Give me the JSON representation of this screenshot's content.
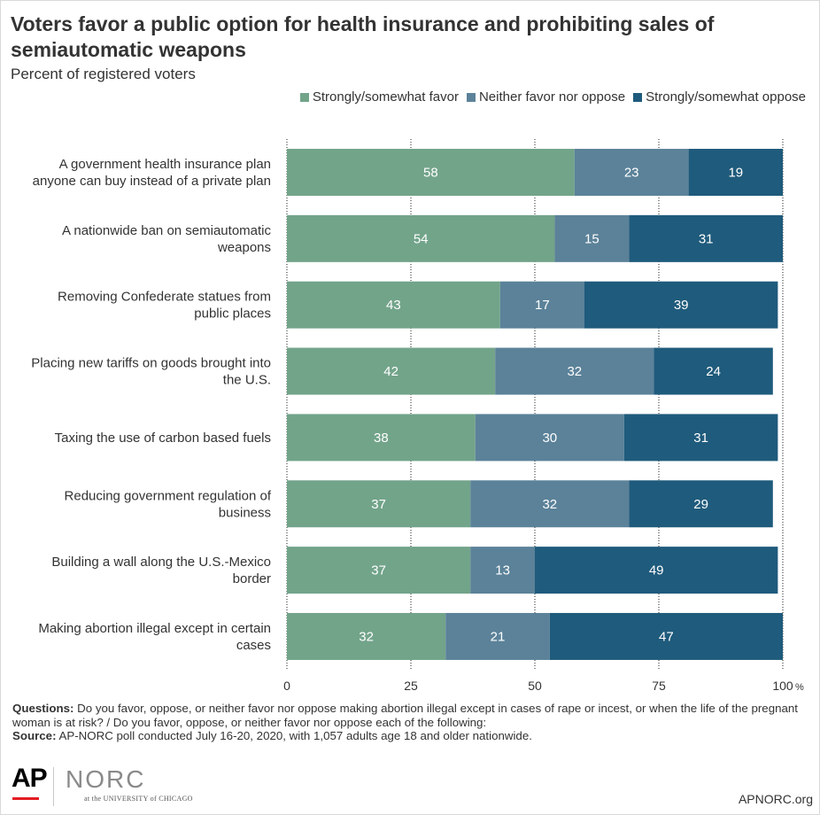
{
  "title": "Voters favor a public option for health insurance and prohibiting sales of semiautomatic weapons",
  "subtitle": "Percent of registered voters",
  "colors": {
    "favor": "#72a48a",
    "neither": "#5b8299",
    "oppose": "#1f5b7c",
    "label_inside": "#ffffff",
    "grid": "#222222"
  },
  "chart_data": {
    "type": "bar",
    "orientation": "horizontal",
    "stacked": true,
    "categories": [
      [
        "A government health insurance plan",
        "anyone can buy instead of a private plan"
      ],
      [
        "A nationwide ban on semiautomatic",
        "weapons"
      ],
      [
        "Removing Confederate statues from",
        "public places"
      ],
      [
        "Placing new tariffs on goods brought into",
        "the U.S."
      ],
      [
        "Taxing the use of carbon based fuels"
      ],
      [
        "Reducing government regulation of",
        "business"
      ],
      [
        "Building a wall along the U.S.-Mexico",
        "border"
      ],
      [
        "Making abortion illegal except in certain",
        "cases"
      ]
    ],
    "series": [
      {
        "name": "Strongly/somewhat favor",
        "values": [
          58,
          54,
          43,
          42,
          38,
          37,
          37,
          32
        ]
      },
      {
        "name": "Neither favor nor oppose",
        "values": [
          23,
          15,
          17,
          32,
          30,
          32,
          13,
          21
        ]
      },
      {
        "name": "Strongly/somewhat oppose",
        "values": [
          19,
          31,
          39,
          24,
          31,
          29,
          49,
          47
        ]
      }
    ],
    "xlim": [
      0,
      100
    ],
    "xticks": [
      "0",
      "25",
      "50",
      "75",
      "100"
    ],
    "x_unit": "%",
    "legend_position": "top-right",
    "grid": true
  },
  "notes": {
    "questions_label": "Questions:",
    "questions_text": "Do you favor, oppose, or neither favor nor oppose making abortion illegal except in cases of rape or incest, or when the life of the pregnant woman is at risk? / Do you favor, oppose, or neither favor nor oppose each of the following:",
    "source_label": "Source:",
    "source_text": "AP-NORC poll conducted July 16-20, 2020, with 1,057 adults age 18 and older nationwide."
  },
  "logos": {
    "ap": "AP",
    "norc": "NORC",
    "norc_sub": "at the UNIVERSITY of CHICAGO"
  },
  "site": "APNORC.org"
}
